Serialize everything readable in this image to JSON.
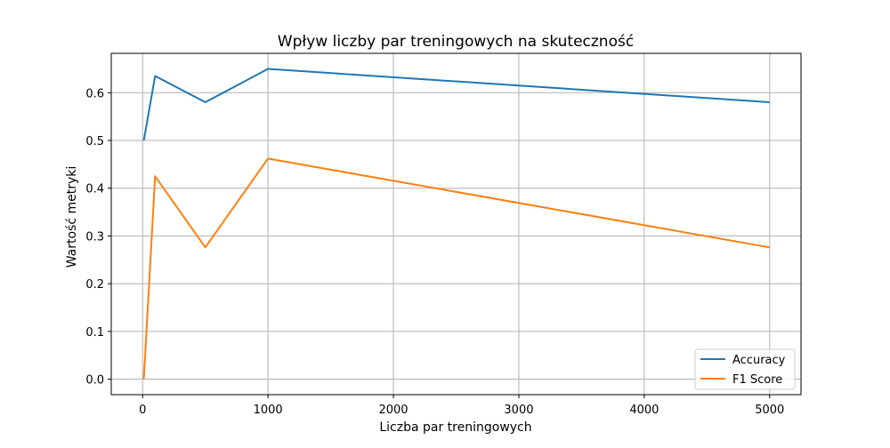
{
  "chart_data": {
    "type": "line",
    "title": "Wpływ liczby par treningowych na skuteczność",
    "xlabel": "Liczba par treningowych",
    "ylabel": "Wartość metryki",
    "xlim": [
      -250,
      5250
    ],
    "ylim": [
      -0.0325,
      0.6825
    ],
    "xticks": [
      0,
      1000,
      2000,
      3000,
      4000,
      5000
    ],
    "yticks": [
      0.0,
      0.1,
      0.2,
      0.3,
      0.4,
      0.5,
      0.6
    ],
    "xtick_labels": [
      "0",
      "1000",
      "2000",
      "3000",
      "4000",
      "5000"
    ],
    "ytick_labels": [
      "0.0",
      "0.1",
      "0.2",
      "0.3",
      "0.4",
      "0.5",
      "0.6"
    ],
    "grid": true,
    "legend_position": "lower-right",
    "x": [
      10,
      100,
      500,
      1000,
      5000
    ],
    "series": [
      {
        "name": "Accuracy",
        "color": "#1f77b4",
        "values": [
          0.5,
          0.635,
          0.58,
          0.65,
          0.58
        ]
      },
      {
        "name": "F1 Score",
        "color": "#ff7f0e",
        "values": [
          0.0,
          0.425,
          0.276,
          0.462,
          0.276
        ]
      }
    ]
  }
}
